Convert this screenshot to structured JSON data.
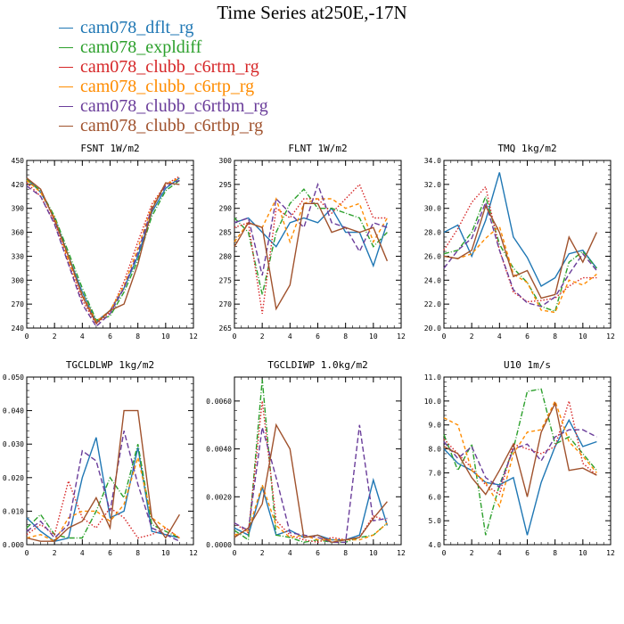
{
  "title": "Time Series at250E,-17N",
  "legend": [
    {
      "name": "cam078_dflt_rg",
      "color": "#1f77b4",
      "dash": "solid"
    },
    {
      "name": "cam078_expldiff",
      "color": "#2ca02c",
      "dash": "dash-dot"
    },
    {
      "name": "cam078_clubb_c6rtm_rg",
      "color": "#d62728",
      "dash": "dotted"
    },
    {
      "name": "cam078_clubb_c6rtp_rg",
      "color": "#ff8c00",
      "dash": "dashed"
    },
    {
      "name": "cam078_clubb_c6rtbm_rg",
      "color": "#6a3d9a",
      "dash": "long-dash"
    },
    {
      "name": "cam078_clubb_c6rtbp_rg",
      "color": "#a0522d",
      "dash": "solid"
    }
  ],
  "chart_data": [
    {
      "type": "line",
      "title": "FSNT  1W/m2",
      "xlim": [
        0,
        12
      ],
      "ylim": [
        240,
        450
      ],
      "xticks": [
        "0",
        "2",
        "4",
        "6",
        "8",
        "10",
        "12"
      ],
      "yticks": [
        "240",
        "270",
        "300",
        "330",
        "360",
        "390",
        "420",
        "450"
      ],
      "x": [
        0,
        1,
        2,
        3,
        4,
        5,
        6,
        7,
        8,
        9,
        10,
        11
      ],
      "series": [
        {
          "name": "cam078_dflt_rg",
          "values": [
            428,
            410,
            378,
            330,
            285,
            248,
            262,
            290,
            330,
            385,
            415,
            428
          ]
        },
        {
          "name": "cam078_expldiff",
          "values": [
            426,
            412,
            380,
            335,
            290,
            250,
            255,
            285,
            325,
            380,
            412,
            425
          ]
        },
        {
          "name": "cam078_clubb_c6rtm_rg",
          "values": [
            422,
            405,
            372,
            322,
            275,
            245,
            260,
            298,
            348,
            395,
            420,
            430
          ]
        },
        {
          "name": "cam078_clubb_c6rtp_rg",
          "values": [
            425,
            410,
            378,
            325,
            282,
            248,
            262,
            293,
            340,
            392,
            420,
            428
          ]
        },
        {
          "name": "cam078_clubb_c6rtbm_rg",
          "values": [
            418,
            405,
            370,
            320,
            270,
            242,
            258,
            290,
            335,
            390,
            418,
            425
          ]
        },
        {
          "name": "cam078_clubb_c6rtbp_rg",
          "values": [
            428,
            414,
            375,
            330,
            280,
            246,
            262,
            270,
            320,
            388,
            422,
            420
          ]
        }
      ]
    },
    {
      "type": "line",
      "title": "FLNT  1W/m2",
      "xlim": [
        0,
        12
      ],
      "ylim": [
        265,
        300
      ],
      "xticks": [
        "0",
        "2",
        "4",
        "6",
        "8",
        "10",
        "12"
      ],
      "yticks": [
        "265",
        "270",
        "275",
        "280",
        "285",
        "290",
        "295",
        "300"
      ],
      "x": [
        0,
        1,
        2,
        3,
        4,
        5,
        6,
        7,
        8,
        9,
        10,
        11
      ],
      "series": [
        {
          "name": "cam078_dflt_rg",
          "values": [
            287,
            288,
            285,
            282,
            287,
            288,
            287,
            290,
            285,
            285,
            278,
            287
          ]
        },
        {
          "name": "cam078_expldiff",
          "values": [
            288,
            285,
            272,
            285,
            291,
            294,
            290,
            290,
            289,
            288,
            282,
            285
          ]
        },
        {
          "name": "cam078_clubb_c6rtm_rg",
          "values": [
            286,
            287,
            268,
            290,
            288,
            292,
            292,
            289,
            292,
            295,
            288,
            288
          ]
        },
        {
          "name": "cam078_clubb_c6rtp_rg",
          "values": [
            283,
            287,
            286,
            292,
            283,
            291,
            292,
            292,
            290,
            291,
            283,
            288
          ]
        },
        {
          "name": "cam078_clubb_c6rtbm_rg",
          "values": [
            287,
            288,
            276,
            292,
            289,
            286,
            295,
            287,
            286,
            281,
            287,
            286
          ]
        },
        {
          "name": "cam078_clubb_c6rtbp_rg",
          "values": [
            282,
            287,
            286,
            269,
            274,
            291,
            291,
            285,
            286,
            285,
            286,
            279
          ]
        }
      ]
    },
    {
      "type": "line",
      "title": "TMQ  1kg/m2",
      "xlim": [
        0,
        12
      ],
      "ylim": [
        20,
        34
      ],
      "xticks": [
        "0",
        "2",
        "4",
        "6",
        "8",
        "10",
        "12"
      ],
      "yticks": [
        "20.0",
        "22.0",
        "24.0",
        "26.0",
        "28.0",
        "30.0",
        "32.0",
        "34.0"
      ],
      "x": [
        0,
        1,
        2,
        3,
        4,
        5,
        6,
        7,
        8,
        9,
        10,
        11
      ],
      "series": [
        {
          "name": "cam078_dflt_rg",
          "values": [
            28,
            28.6,
            26,
            29,
            33,
            27.6,
            25.9,
            23.5,
            24.2,
            26.2,
            26.5,
            25
          ]
        },
        {
          "name": "cam078_expldiff",
          "values": [
            26.2,
            26.5,
            28,
            31,
            27,
            25,
            23.8,
            21.8,
            21.4,
            25.5,
            26.4,
            25
          ]
        },
        {
          "name": "cam078_clubb_c6rtm_rg",
          "values": [
            26.5,
            28.3,
            30.5,
            31.8,
            26.5,
            23,
            22.2,
            22.3,
            22.5,
            23.5,
            24.2,
            24.2
          ]
        },
        {
          "name": "cam078_clubb_c6rtp_rg",
          "values": [
            26,
            25.8,
            26.2,
            27.5,
            28.5,
            24.5,
            23.8,
            21.5,
            21.3,
            24,
            23.6,
            24.5
          ]
        },
        {
          "name": "cam078_clubb_c6rtbm_rg",
          "values": [
            25,
            26.5,
            27.5,
            30.5,
            26.5,
            23.2,
            22.1,
            21.8,
            22.6,
            24.5,
            26.2,
            24.8
          ]
        },
        {
          "name": "cam078_clubb_c6rtbp_rg",
          "values": [
            26,
            25.8,
            26.5,
            30.2,
            28,
            24.3,
            24.8,
            22.5,
            22.8,
            27.6,
            25.5,
            28
          ]
        }
      ]
    },
    {
      "type": "line",
      "title": "TGCLDLWP  1kg/m2",
      "xlim": [
        0,
        12
      ],
      "ylim": [
        0,
        0.05
      ],
      "xticks": [
        "0",
        "2",
        "4",
        "6",
        "8",
        "10",
        "12"
      ],
      "yticks": [
        "0.000",
        "0.010",
        "0.020",
        "0.030",
        "0.040",
        "0.050"
      ],
      "x": [
        0,
        1,
        2,
        3,
        4,
        5,
        6,
        7,
        8,
        9,
        10,
        11
      ],
      "series": [
        {
          "name": "cam078_dflt_rg",
          "values": [
            0.008,
            0.004,
            0.001,
            0.002,
            0.02,
            0.032,
            0.008,
            0.01,
            0.029,
            0.004,
            0.003,
            0.002
          ]
        },
        {
          "name": "cam078_expldiff",
          "values": [
            0.005,
            0.009,
            0.003,
            0.002,
            0.002,
            0.01,
            0.02,
            0.014,
            0.03,
            0.006,
            0.004,
            0.002
          ]
        },
        {
          "name": "cam078_clubb_c6rtm_rg",
          "values": [
            0.003,
            0.006,
            0.003,
            0.019,
            0.008,
            0.005,
            0.011,
            0.008,
            0.002,
            0.003,
            0.005,
            0.002
          ]
        },
        {
          "name": "cam078_clubb_c6rtp_rg",
          "values": [
            0.002,
            0.003,
            0.001,
            0.008,
            0.01,
            0.01,
            0.007,
            0.012,
            0.026,
            0.008,
            0.005,
            0.002
          ]
        },
        {
          "name": "cam078_clubb_c6rtbm_rg",
          "values": [
            0.004,
            0.007,
            0.002,
            0.006,
            0.028,
            0.025,
            0.01,
            0.034,
            0.018,
            0.005,
            0.003,
            0.001
          ]
        },
        {
          "name": "cam078_clubb_c6rtbp_rg",
          "values": [
            0.002,
            0.001,
            0.001,
            0.005,
            0.007,
            0.014,
            0.005,
            0.04,
            0.04,
            0.008,
            0.002,
            0.009
          ]
        }
      ]
    },
    {
      "type": "line",
      "title": "TGCLDIWP  1.0kg/m2",
      "xlim": [
        0,
        12
      ],
      "ylim": [
        0,
        0.007
      ],
      "xticks": [
        "0",
        "2",
        "4",
        "6",
        "8",
        "10",
        "12"
      ],
      "yticks": [
        "0.0000",
        "0.0020",
        "0.0040",
        "0.0060"
      ],
      "x": [
        0,
        1,
        2,
        3,
        4,
        5,
        6,
        7,
        8,
        9,
        10,
        11
      ],
      "series": [
        {
          "name": "cam078_dflt_rg",
          "values": [
            0.0007,
            0.0004,
            0.0024,
            0.0004,
            0.0006,
            0.0003,
            0.0004,
            0.0002,
            0.0002,
            0.0004,
            0.0027,
            0.0008
          ]
        },
        {
          "name": "cam078_expldiff",
          "values": [
            0.0006,
            0.0002,
            0.0069,
            0.0004,
            0.0003,
            0.0001,
            0.0002,
            0.0001,
            0.0001,
            0.0003,
            0.0004,
            0.0009
          ]
        },
        {
          "name": "cam078_clubb_c6rtm_rg",
          "values": [
            0.0009,
            0.0005,
            0.006,
            0.001,
            0.0004,
            0.0002,
            0.0001,
            0.0003,
            0.0002,
            0.0003,
            0.0012,
            0.001
          ]
        },
        {
          "name": "cam078_clubb_c6rtp_rg",
          "values": [
            0.0004,
            0.0006,
            0.0025,
            0.0008,
            0.0003,
            0.0004,
            0.0002,
            0.0002,
            0.0002,
            0.0002,
            0.0004,
            0.0009
          ]
        },
        {
          "name": "cam078_clubb_c6rtbm_rg",
          "values": [
            0.0009,
            0.0006,
            0.0049,
            0.0028,
            0.0005,
            0.0004,
            0.0003,
            0.0001,
            0.0001,
            0.005,
            0.001,
            0.0011
          ]
        },
        {
          "name": "cam078_clubb_c6rtbp_rg",
          "values": [
            0.0003,
            0.0007,
            0.0017,
            0.005,
            0.004,
            0.0003,
            0.0004,
            0.0001,
            0.0002,
            0.0003,
            0.0011,
            0.0018
          ]
        }
      ]
    },
    {
      "type": "line",
      "title": "U10  1m/s",
      "xlim": [
        0,
        12
      ],
      "ylim": [
        4,
        11
      ],
      "xticks": [
        "0",
        "2",
        "4",
        "6",
        "8",
        "10",
        "12"
      ],
      "yticks": [
        "4.0",
        "5.0",
        "6.0",
        "7.0",
        "8.0",
        "9.0",
        "10.0",
        "11.0"
      ],
      "x": [
        0,
        1,
        2,
        3,
        4,
        5,
        6,
        7,
        8,
        9,
        10,
        11
      ],
      "series": [
        {
          "name": "cam078_dflt_rg",
          "values": [
            8,
            7.4,
            7.1,
            6.6,
            6.5,
            6.8,
            4.4,
            6.6,
            8.1,
            9.2,
            8.1,
            8.3
          ]
        },
        {
          "name": "cam078_expldiff",
          "values": [
            8.6,
            7.1,
            8.2,
            4.4,
            6.5,
            8,
            10.4,
            10.5,
            8.2,
            8.5,
            7.8,
            7.1
          ]
        },
        {
          "name": "cam078_clubb_c6rtm_rg",
          "values": [
            8.4,
            7.8,
            7.2,
            6.5,
            6.1,
            8.2,
            8,
            7.8,
            8.1,
            10,
            7.4,
            6.9
          ]
        },
        {
          "name": "cam078_clubb_c6rtp_rg",
          "values": [
            9.3,
            9,
            7.1,
            6.6,
            5.6,
            7.8,
            8.7,
            8.8,
            10,
            8.3,
            7.7,
            7
          ]
        },
        {
          "name": "cam078_clubb_c6rtbm_rg",
          "values": [
            8.3,
            7.6,
            8.1,
            6.8,
            6.4,
            8,
            8.2,
            7.5,
            8.5,
            8.8,
            8.8,
            8.5
          ]
        },
        {
          "name": "cam078_clubb_c6rtbp_rg",
          "values": [
            8.1,
            7.8,
            6.8,
            6.1,
            7.1,
            8.2,
            6,
            8.7,
            9.9,
            7.1,
            7.2,
            6.9
          ]
        }
      ]
    }
  ]
}
